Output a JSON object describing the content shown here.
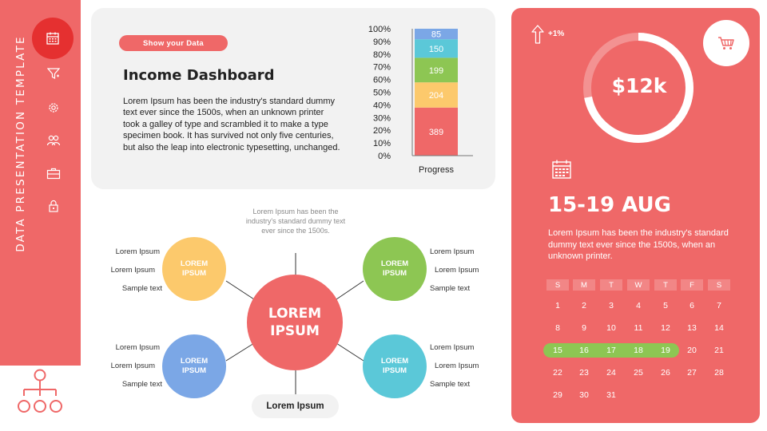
{
  "sidebar": {
    "vertical_title": "DATA PRESENTATION TEMPLATE",
    "icons": [
      "calendar-icon",
      "funnel-icon",
      "gear-icon",
      "users-icon",
      "briefcase-icon",
      "lock-icon"
    ],
    "bottom_icon": "org-chart-icon"
  },
  "header_card": {
    "pill": "Show your Data",
    "title": "Income Dashboard",
    "text": "Lorem Ipsum has been the industry's standard dummy text ever since the 1500s, when an unknown printer took a galley of type and scrambled it to make a type specimen book. It has survived not only five centuries, but also the leap into electronic typesetting,  unchanged."
  },
  "chart_data": {
    "type": "bar",
    "stacked": true,
    "categories": [
      "Progress"
    ],
    "series": [
      {
        "values": [
          389
        ],
        "color": "#ef6868"
      },
      {
        "values": [
          204
        ],
        "color": "#fcc96c"
      },
      {
        "values": [
          199
        ],
        "color": "#8dc653"
      },
      {
        "values": [
          150
        ],
        "color": "#5bc8d8"
      },
      {
        "values": [
          85
        ],
        "color": "#7ba7e6"
      }
    ],
    "yticks": [
      "0%",
      "10%",
      "20%",
      "30%",
      "40%",
      "50%",
      "60%",
      "70%",
      "80%",
      "90%",
      "100%"
    ],
    "xlabel": "Progress",
    "ylim": [
      0,
      1027
    ],
    "grid": false
  },
  "mindmap": {
    "caption": "Lorem Ipsum has been the industry's standard dummy text ever since the 1500s.",
    "center": {
      "line1": "LOREM",
      "line2": "IPSUM",
      "color": "#ef6868"
    },
    "nodes": [
      {
        "line1": "LOREM",
        "line2": "IPSUM",
        "color": "#fcc96c",
        "labels": [
          "Lorem Ipsum",
          "Lorem Ipsum",
          "Sample text"
        ]
      },
      {
        "line1": "LOREM",
        "line2": "IPSUM",
        "color": "#8dc653",
        "labels": [
          "Lorem Ipsum",
          "Lorem Ipsum",
          "Sample text"
        ]
      },
      {
        "line1": "LOREM",
        "line2": "IPSUM",
        "color": "#7ba7e6",
        "labels": [
          "Lorem Ipsum",
          "Lorem Ipsum",
          "Sample text"
        ]
      },
      {
        "line1": "LOREM",
        "line2": "IPSUM",
        "color": "#5bc8d8",
        "labels": [
          "Lorem Ipsum",
          "Lorem Ipsum",
          "Sample text"
        ]
      }
    ],
    "bottom_pill": "Lorem Ipsum"
  },
  "stats_card": {
    "growth": "+1%",
    "amount": "$12k",
    "progress_fraction": 0.72,
    "date_range": "15-19 AUG",
    "text": "Lorem Ipsum has been the industry's standard dummy text ever since the 1500s, when an unknown printer.",
    "weekdays": [
      "S",
      "M",
      "T",
      "W",
      "T",
      "F",
      "S"
    ],
    "weeks": [
      [
        "1",
        "2",
        "3",
        "4",
        "5",
        "6",
        "7"
      ],
      [
        "8",
        "9",
        "10",
        "11",
        "12",
        "13",
        "14"
      ],
      [
        "15",
        "16",
        "17",
        "18",
        "19",
        "20",
        "21"
      ],
      [
        "22",
        "23",
        "24",
        "25",
        "26",
        "27",
        "28"
      ],
      [
        "29",
        "30",
        "31"
      ]
    ],
    "highlighted_days": [
      "15",
      "16",
      "17",
      "18",
      "19"
    ],
    "highlight_color": "#8dc653",
    "accent": "#ef6868"
  }
}
